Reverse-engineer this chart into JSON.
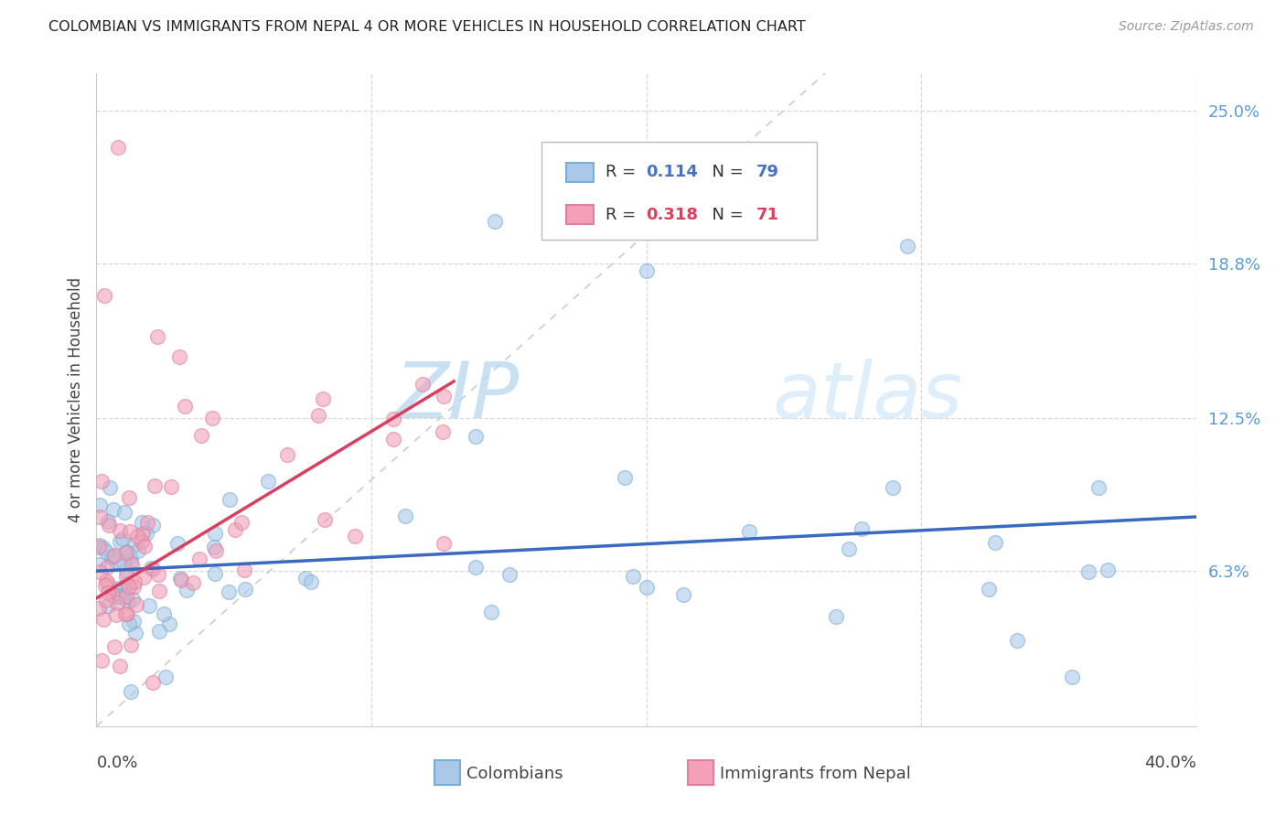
{
  "title": "COLOMBIAN VS IMMIGRANTS FROM NEPAL 4 OR MORE VEHICLES IN HOUSEHOLD CORRELATION CHART",
  "source": "Source: ZipAtlas.com",
  "ylabel": "4 or more Vehicles in Household",
  "right_yticklabels": [
    "6.3%",
    "12.5%",
    "18.8%",
    "25.0%"
  ],
  "right_ytick_vals": [
    0.063,
    0.125,
    0.188,
    0.25
  ],
  "watermark_zip": "ZIP",
  "watermark_atlas": "atlas",
  "legend_col_R": "0.114",
  "legend_col_N": "79",
  "legend_nep_R": "0.318",
  "legend_nep_N": "71",
  "colombians_color": "#aac9e8",
  "nepal_color": "#f0a0b8",
  "colombians_line_color": "#3a6abf",
  "nepal_line_color": "#d94060",
  "diagonal_color": "#cccccc",
  "background_color": "#ffffff",
  "grid_color": "#d8d8d8",
  "title_color": "#222222",
  "right_tick_color": "#5b9bd5",
  "source_color": "#999999",
  "xlim": [
    0.0,
    0.4
  ],
  "ylim": [
    0.0,
    0.265
  ]
}
